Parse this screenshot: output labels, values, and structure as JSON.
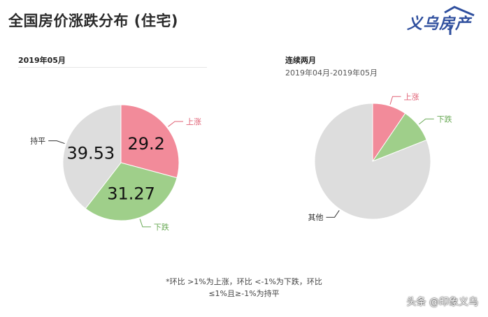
{
  "page": {
    "title": "全国房价涨跌分布 (住宅)",
    "logo_text": "义乌房产",
    "footnote_line1": "*环比 >1%为上涨，环比 <-1%为下跌，环比",
    "footnote_line2": "≤1%且≥-1%为持平",
    "watermark": "头条 @印象义乌"
  },
  "chart_data": [
    {
      "type": "pie",
      "title": "2019年05月",
      "slices": [
        {
          "label": "上涨",
          "value": 29.2,
          "value_label": "29.2",
          "color": "#f28b9a",
          "label_color": "#e06074"
        },
        {
          "label": "下跌",
          "value": 31.27,
          "value_label": "31.27",
          "color": "#9fcf8a",
          "label_color": "#6aaa56"
        },
        {
          "label": "持平",
          "value": 39.53,
          "value_label": "39.53",
          "color": "#dddddd",
          "label_color": "#333333"
        }
      ]
    },
    {
      "type": "pie",
      "title": "连续两月",
      "subtitle": "2019年04月-2019年05月",
      "slices": [
        {
          "label": "上涨",
          "value": 9.5,
          "color": "#f28b9a",
          "label_color": "#e06074"
        },
        {
          "label": "下跌",
          "value": 9.5,
          "color": "#9fcf8a",
          "label_color": "#6aaa56"
        },
        {
          "label": "其他",
          "value": 81.0,
          "color": "#dddddd",
          "label_color": "#333333"
        }
      ]
    }
  ]
}
